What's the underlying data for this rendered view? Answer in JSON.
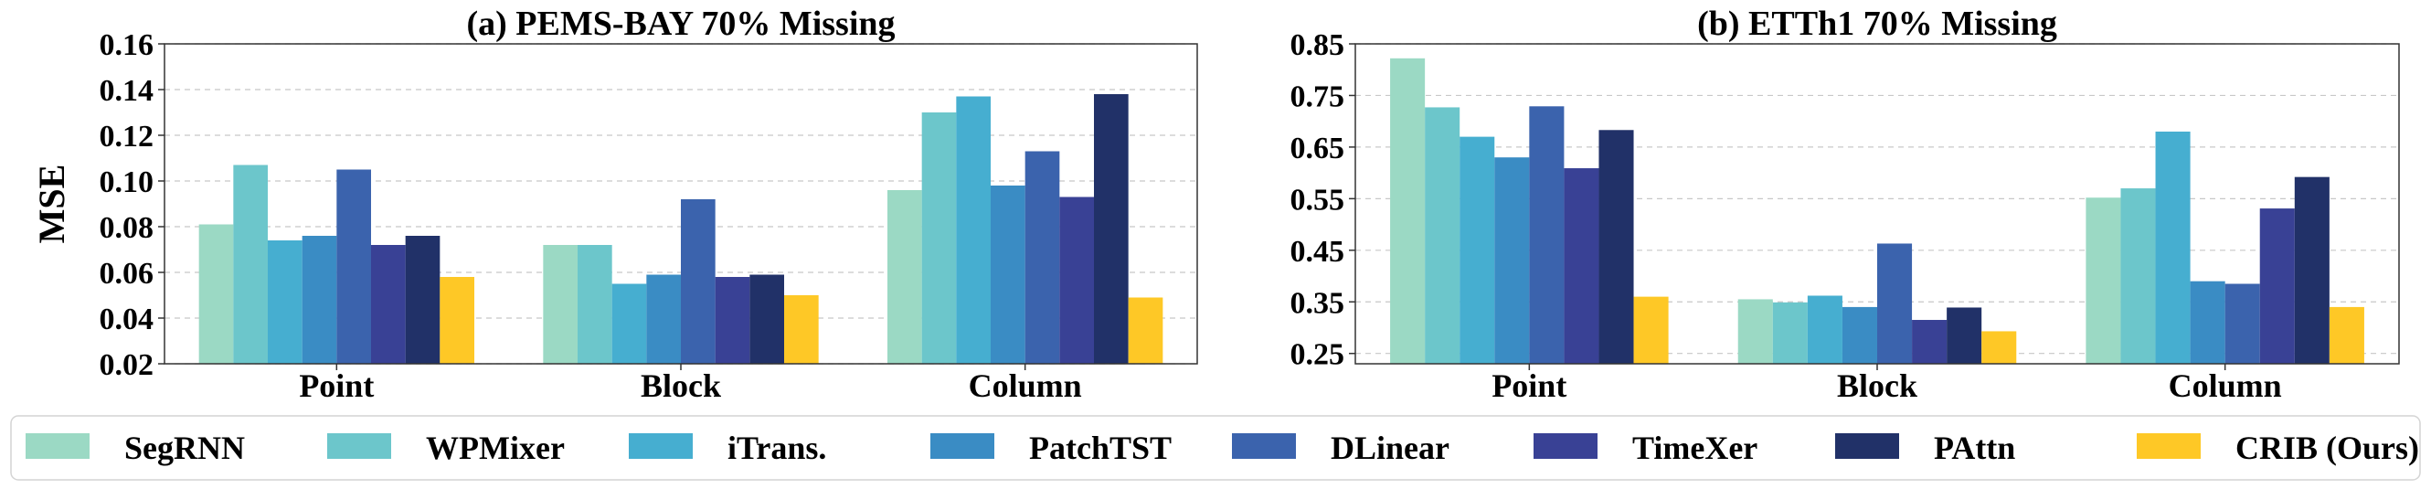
{
  "legend": {
    "series_names": [
      "SegRNN",
      "WPMixer",
      "iTrans.",
      "PatchTST",
      "DLinear",
      "TimeXer",
      "PAttn",
      "CRIB (Ours)"
    ]
  },
  "colors": [
    "#9bd9c4",
    "#6cc6cb",
    "#46aed0",
    "#3a8cc4",
    "#3b63ad",
    "#394195",
    "#213168",
    "#fec826"
  ],
  "chart_data": [
    {
      "type": "bar",
      "title": "(a) PEMS-BAY 70% Missing",
      "xlabel": "",
      "ylabel": "MSE",
      "categories": [
        "Point",
        "Block",
        "Column"
      ],
      "ylim": [
        0.02,
        0.16
      ],
      "yticks": [
        0.02,
        0.04,
        0.06,
        0.08,
        0.1,
        0.12,
        0.14,
        0.16
      ],
      "ytick_labels": [
        "0.02",
        "0.04",
        "0.06",
        "0.08",
        "0.10",
        "0.12",
        "0.14",
        "0.16"
      ],
      "grid": true,
      "series": [
        {
          "name": "SegRNN",
          "values": [
            0.081,
            0.072,
            0.096
          ]
        },
        {
          "name": "WPMixer",
          "values": [
            0.107,
            0.072,
            0.13
          ]
        },
        {
          "name": "iTrans.",
          "values": [
            0.074,
            0.055,
            0.137
          ]
        },
        {
          "name": "PatchTST",
          "values": [
            0.076,
            0.059,
            0.098
          ]
        },
        {
          "name": "DLinear",
          "values": [
            0.105,
            0.092,
            0.113
          ]
        },
        {
          "name": "TimeXer",
          "values": [
            0.072,
            0.058,
            0.093
          ]
        },
        {
          "name": "PAttn",
          "values": [
            0.076,
            0.059,
            0.138
          ]
        },
        {
          "name": "CRIB (Ours)",
          "values": [
            0.058,
            0.05,
            0.049
          ]
        }
      ]
    },
    {
      "type": "bar",
      "title": "(b) ETTh1 70% Missing",
      "xlabel": "",
      "ylabel": "",
      "categories": [
        "Point",
        "Block",
        "Column"
      ],
      "ylim": [
        0.23,
        0.85
      ],
      "yticks": [
        0.25,
        0.35,
        0.45,
        0.55,
        0.65,
        0.75,
        0.85
      ],
      "ytick_labels": [
        "0.25",
        "0.35",
        "0.45",
        "0.55",
        "0.65",
        "0.75",
        "0.85"
      ],
      "grid": true,
      "series": [
        {
          "name": "SegRNN",
          "values": [
            0.822,
            0.355,
            0.552
          ]
        },
        {
          "name": "WPMixer",
          "values": [
            0.727,
            0.349,
            0.57
          ]
        },
        {
          "name": "iTrans.",
          "values": [
            0.67,
            0.362,
            0.68
          ]
        },
        {
          "name": "PatchTST",
          "values": [
            0.63,
            0.34,
            0.39
          ]
        },
        {
          "name": "DLinear",
          "values": [
            0.729,
            0.463,
            0.385
          ]
        },
        {
          "name": "TimeXer",
          "values": [
            0.609,
            0.315,
            0.531
          ]
        },
        {
          "name": "PAttn",
          "values": [
            0.683,
            0.339,
            0.592
          ]
        },
        {
          "name": "CRIB (Ours)",
          "values": [
            0.36,
            0.293,
            0.34
          ]
        }
      ]
    }
  ]
}
